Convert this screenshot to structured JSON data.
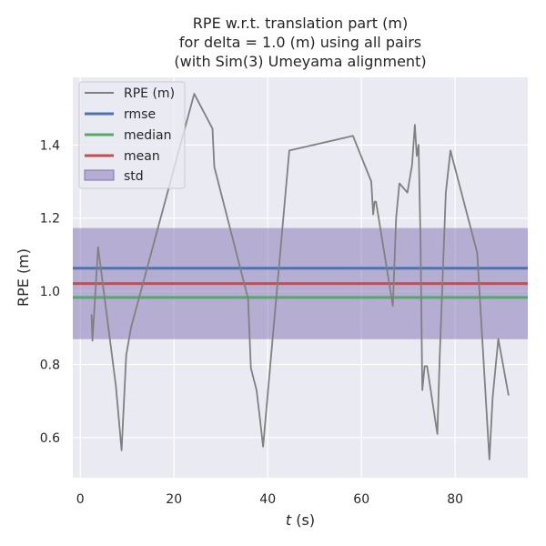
{
  "chart_data": {
    "type": "line",
    "title_lines": [
      "RPE w.r.t. translation part (m)",
      "for delta = 1.0 (m) using all pairs",
      "(with Sim(3) Umeyama alignment)"
    ],
    "xlabel_var": "t",
    "xlabel_unit": " (s)",
    "ylabel": "RPE (m)",
    "xlim": [
      -1.6,
      95.5
    ],
    "ylim": [
      0.49,
      1.585
    ],
    "xticks": [
      0,
      20,
      40,
      60,
      80
    ],
    "yticks": [
      0.6,
      0.8,
      1.0,
      1.2,
      1.4
    ],
    "ytick_labels": [
      "0.6",
      "0.8",
      "1.0",
      "1.2",
      "1.4"
    ],
    "grid": true,
    "legend_position": "top-left",
    "legend": {
      "rpe": "RPE (m)",
      "rmse": "rmse",
      "median": "median",
      "mean": "mean",
      "std": "std"
    },
    "colors": {
      "background": "#eaeaf2",
      "grid": "#ffffff",
      "rpe": "#808080",
      "rmse": "#4c72b0",
      "median": "#55a868",
      "mean": "#c44e52",
      "std": "#8172b2"
    },
    "stats": {
      "rmse": 1.063,
      "median": 0.983,
      "mean": 1.021,
      "std_low": 0.869,
      "std_high": 1.173
    },
    "series": {
      "x": [
        2.4,
        2.4,
        2.6,
        3.8,
        7.6,
        8.8,
        9.8,
        10.8,
        24.3,
        28.2,
        28.6,
        35.8,
        36.4,
        37.6,
        38.3,
        39.0,
        44.6,
        58.2,
        62.1,
        62.5,
        62.8,
        63.1,
        66.7,
        67.4,
        68.1,
        69.8,
        70.8,
        71.4,
        71.8,
        72.2,
        72.6,
        73.0,
        73.5,
        74.0,
        76.2,
        76.7,
        78.0,
        79.0,
        84.7,
        87.3,
        88.0,
        89.2,
        91.4
      ],
      "y": [
        0.93,
        0.935,
        0.865,
        1.12,
        0.74,
        0.565,
        0.825,
        0.9,
        1.54,
        1.445,
        1.34,
        0.98,
        0.79,
        0.73,
        0.655,
        0.575,
        1.385,
        1.425,
        1.3,
        1.21,
        1.245,
        1.245,
        0.96,
        1.2,
        1.295,
        1.27,
        1.345,
        1.455,
        1.37,
        1.4,
        1.14,
        0.73,
        0.795,
        0.795,
        0.61,
        0.82,
        1.27,
        1.385,
        1.105,
        0.54,
        0.71,
        0.87,
        0.715
      ]
    }
  }
}
